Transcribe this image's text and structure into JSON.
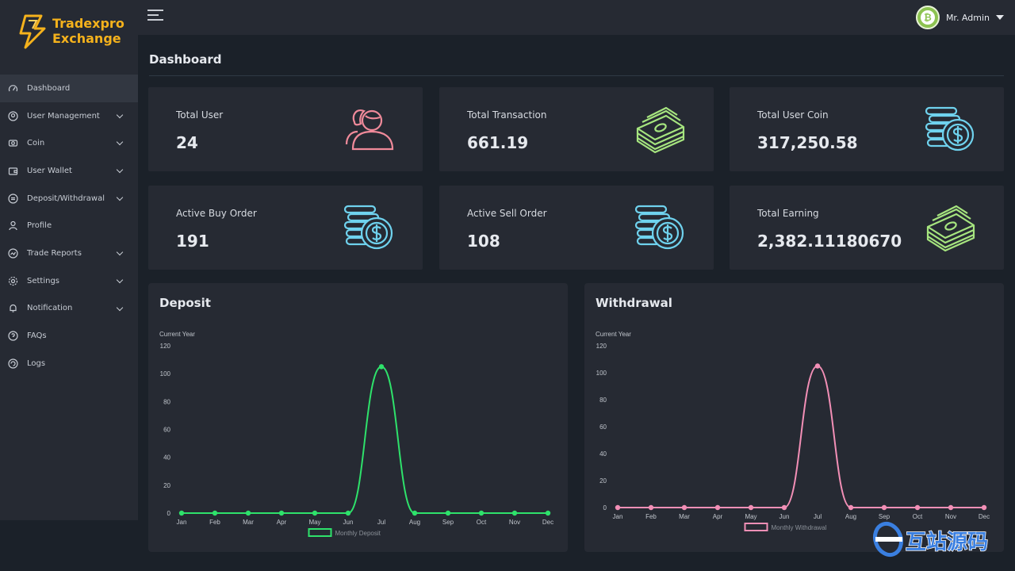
{
  "brand": {
    "line1": "Tradexpro",
    "line2": "Exchange",
    "color": "#f5b21c"
  },
  "header": {
    "user_name": "Mr. Admin",
    "avatar_symbol": "₿",
    "avatar_color": "#8dc351"
  },
  "sidebar": {
    "items": [
      {
        "label": "Dashboard",
        "icon": "speedometer-icon",
        "active": true,
        "expandable": false
      },
      {
        "label": "User Management",
        "icon": "user-circle-icon",
        "active": false,
        "expandable": true
      },
      {
        "label": "Coin",
        "icon": "coin-icon",
        "active": false,
        "expandable": true
      },
      {
        "label": "User Wallet",
        "icon": "wallet-icon",
        "active": false,
        "expandable": true
      },
      {
        "label": "Deposit/Withdrawal",
        "icon": "exchange-icon",
        "active": false,
        "expandable": true
      },
      {
        "label": "Profile",
        "icon": "person-icon",
        "active": false,
        "expandable": false
      },
      {
        "label": "Trade Reports",
        "icon": "report-icon",
        "active": false,
        "expandable": true
      },
      {
        "label": "Settings",
        "icon": "gear-icon",
        "active": false,
        "expandable": true
      },
      {
        "label": "Notification",
        "icon": "bell-icon",
        "active": false,
        "expandable": true
      },
      {
        "label": "FAQs",
        "icon": "question-icon",
        "active": false,
        "expandable": false
      },
      {
        "label": "Logs",
        "icon": "logs-icon",
        "active": false,
        "expandable": false
      }
    ]
  },
  "main": {
    "title": "Dashboard",
    "cards": [
      {
        "label": "Total User",
        "value": "24",
        "icon": "users-icon",
        "color": "#f08a9a"
      },
      {
        "label": "Total Transaction",
        "value": "661.19",
        "icon": "cash-stack-icon",
        "color": "#a6e57f"
      },
      {
        "label": "Total User Coin",
        "value": "317,250.58",
        "icon": "coin-stack-icon",
        "color": "#6fd2ee"
      },
      {
        "label": "Active Buy Order",
        "value": "191",
        "icon": "coin-stack-icon",
        "color": "#6fd2ee"
      },
      {
        "label": "Active Sell Order",
        "value": "108",
        "icon": "coin-stack-icon",
        "color": "#6fd2ee"
      },
      {
        "label": "Total Earning",
        "value": "2,382.11180670",
        "icon": "cash-stack-icon",
        "color": "#a6e57f"
      }
    ]
  },
  "chart_data": [
    {
      "type": "line",
      "title": "Deposit",
      "subtitle": "Current Year",
      "categories": [
        "Jan",
        "Feb",
        "Mar",
        "Apr",
        "May",
        "Jun",
        "Jul",
        "Aug",
        "Sep",
        "Oct",
        "Nov",
        "Dec"
      ],
      "series": [
        {
          "name": "Monthly Deposit",
          "values": [
            0,
            0,
            0,
            0,
            0,
            0,
            105,
            0,
            0,
            0,
            0,
            0
          ],
          "color": "#2ee26b"
        }
      ],
      "yticks": [
        0,
        20,
        40,
        60,
        80,
        100,
        120
      ],
      "ylim": [
        0,
        120
      ],
      "legend": "bottom",
      "grid": false
    },
    {
      "type": "line",
      "title": "Withdrawal",
      "subtitle": "Current Year",
      "categories": [
        "Jan",
        "Feb",
        "Mar",
        "Apr",
        "May",
        "Jun",
        "Jul",
        "Aug",
        "Sep",
        "Oct",
        "Nov",
        "Dec"
      ],
      "series": [
        {
          "name": "Monthly Withdrawal",
          "values": [
            0,
            0,
            0,
            0,
            0,
            0,
            105,
            0,
            0,
            0,
            0,
            0
          ],
          "color": "#f28fb6"
        }
      ],
      "yticks": [
        0,
        20,
        40,
        60,
        80,
        100,
        120
      ],
      "ylim": [
        0,
        120
      ],
      "legend": "bottom",
      "grid": false
    }
  ],
  "watermark": {
    "text": "互站源码"
  }
}
